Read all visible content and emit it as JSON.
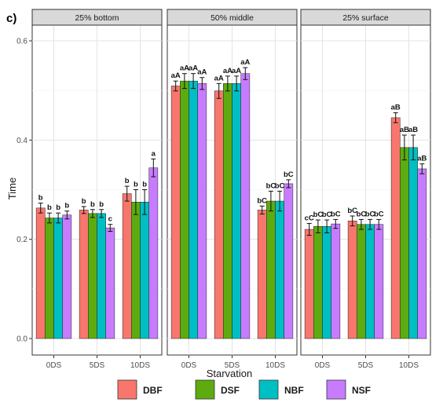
{
  "panel_letter": "c)",
  "chart_data": {
    "type": "bar",
    "ylabel": "Time",
    "xlabel": "Starvation",
    "ylim": [
      0,
      0.62
    ],
    "yticks": [
      0.0,
      0.2,
      0.4,
      0.6
    ],
    "ytick_labels": [
      "0.0",
      "0.2",
      "0.4",
      "0.6"
    ],
    "categories": [
      "0DS",
      "5DS",
      "10DS"
    ],
    "grid": true,
    "legend_position": "bottom",
    "series_names": [
      "DBF",
      "DSF",
      "NBF",
      "NSF"
    ],
    "colors": [
      "#F8766D",
      "#5DAB10",
      "#00BFC4",
      "#C77CFF"
    ],
    "panels": [
      {
        "title": "25% bottom",
        "values": [
          [
            0.263,
            0.243,
            0.243,
            0.249
          ],
          [
            0.259,
            0.252,
            0.252,
            0.223
          ],
          [
            0.292,
            0.275,
            0.275,
            0.344
          ]
        ],
        "errors": [
          [
            0.01,
            0.01,
            0.01,
            0.008
          ],
          [
            0.007,
            0.008,
            0.008,
            0.007
          ],
          [
            0.015,
            0.025,
            0.025,
            0.018
          ]
        ],
        "labels": [
          [
            "b",
            "b",
            "b",
            "b"
          ],
          [
            "b",
            "b",
            "b",
            "c"
          ],
          [
            "b",
            "b",
            "b",
            "a"
          ]
        ]
      },
      {
        "title": "50% middle",
        "values": [
          [
            0.509,
            0.519,
            0.519,
            0.514
          ],
          [
            0.499,
            0.514,
            0.514,
            0.534
          ],
          [
            0.259,
            0.277,
            0.277,
            0.312
          ]
        ],
        "errors": [
          [
            0.01,
            0.015,
            0.015,
            0.012
          ],
          [
            0.015,
            0.015,
            0.015,
            0.012
          ],
          [
            0.008,
            0.02,
            0.02,
            0.008
          ]
        ],
        "labels": [
          [
            "aA",
            "aA",
            "aA",
            "aA"
          ],
          [
            "aA",
            "aA",
            "aA",
            "aA"
          ],
          [
            "bC",
            "bC",
            "bC",
            "bC"
          ]
        ]
      },
      {
        "title": "25% surface",
        "values": [
          [
            0.22,
            0.226,
            0.226,
            0.231
          ],
          [
            0.237,
            0.23,
            0.23,
            0.23
          ],
          [
            0.445,
            0.385,
            0.385,
            0.342
          ]
        ],
        "errors": [
          [
            0.012,
            0.013,
            0.013,
            0.009
          ],
          [
            0.01,
            0.01,
            0.01,
            0.01
          ],
          [
            0.01,
            0.025,
            0.025,
            0.01
          ]
        ],
        "labels": [
          [
            "cC",
            "bC",
            "bC",
            "bC"
          ],
          [
            "bC",
            "bC",
            "bC",
            "bC"
          ],
          [
            "aB",
            "aB",
            "aB",
            "aB"
          ]
        ]
      }
    ]
  }
}
